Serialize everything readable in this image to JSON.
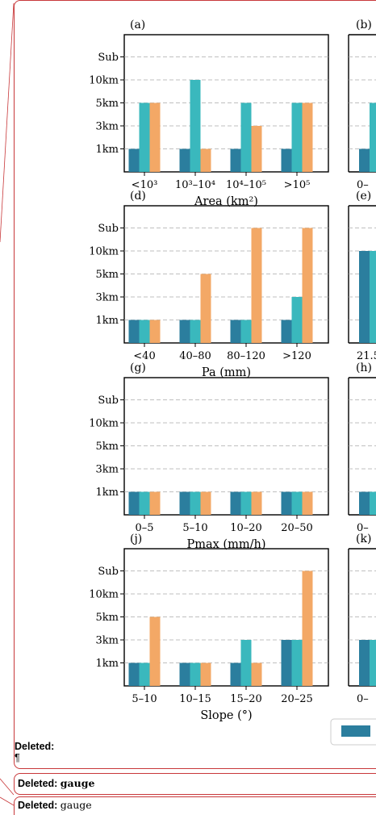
{
  "notes": [
    {
      "label": "Deleted:",
      "text": "¶"
    },
    {
      "label": "Deleted: ",
      "text": "gauge"
    },
    {
      "label": "Deleted: ",
      "text": "gauge"
    }
  ],
  "colors": {
    "series1": "#2b7e9e",
    "series2": "#3ab8bd",
    "series3": "#f3a866",
    "grid": "#aaaaaa",
    "balloon_border": "#c8383a"
  },
  "chart_data": [
    {
      "type": "bar",
      "panel": "(a)",
      "y_tick_labels": [
        "Sub",
        "10km",
        "5km",
        "3km",
        "1km"
      ],
      "categories": [
        "<10³",
        "10³–10⁴",
        "10⁴–10⁵",
        ">10⁵"
      ],
      "xlabel": "Area (km²)",
      "series": [
        {
          "values": [
            1,
            1,
            1,
            1
          ]
        },
        {
          "values": [
            3,
            4,
            3,
            3
          ]
        },
        {
          "values": [
            3,
            1,
            2,
            3
          ]
        }
      ]
    },
    {
      "type": "bar",
      "panel": "(d)",
      "y_tick_labels": [
        "Sub",
        "10km",
        "5km",
        "3km",
        "1km"
      ],
      "categories": [
        "<40",
        "40–80",
        "80–120",
        ">120"
      ],
      "xlabel": "Pa (mm)",
      "series": [
        {
          "values": [
            1,
            1,
            1,
            1
          ]
        },
        {
          "values": [
            1,
            1,
            1,
            2
          ]
        },
        {
          "values": [
            1,
            3,
            5,
            5
          ]
        }
      ]
    },
    {
      "type": "bar",
      "panel": "(g)",
      "y_tick_labels": [
        "Sub",
        "10km",
        "5km",
        "3km",
        "1km"
      ],
      "categories": [
        "0–5",
        "5–10",
        "10–20",
        "20–50"
      ],
      "xlabel": "Pmax (mm/h)",
      "series": [
        {
          "values": [
            1,
            1,
            1,
            1
          ]
        },
        {
          "values": [
            1,
            1,
            1,
            1
          ]
        },
        {
          "values": [
            1,
            1,
            1,
            1
          ]
        }
      ]
    },
    {
      "type": "bar",
      "panel": "(j)",
      "y_tick_labels": [
        "Sub",
        "10km",
        "5km",
        "3km",
        "1km"
      ],
      "categories": [
        "5–10",
        "10–15",
        "15–20",
        "20–25"
      ],
      "xlabel": "Slope (°)",
      "series": [
        {
          "values": [
            1,
            1,
            1,
            2
          ]
        },
        {
          "values": [
            1,
            1,
            2,
            2
          ]
        },
        {
          "values": [
            3,
            1,
            1,
            5
          ]
        }
      ]
    }
  ],
  "partial_panels": [
    {
      "label": "(b)",
      "tick": "0–"
    },
    {
      "label": "(e)",
      "tick": "21.5"
    },
    {
      "label": "(h)",
      "tick": "0–"
    },
    {
      "label": "(k)",
      "tick": "0–"
    }
  ]
}
